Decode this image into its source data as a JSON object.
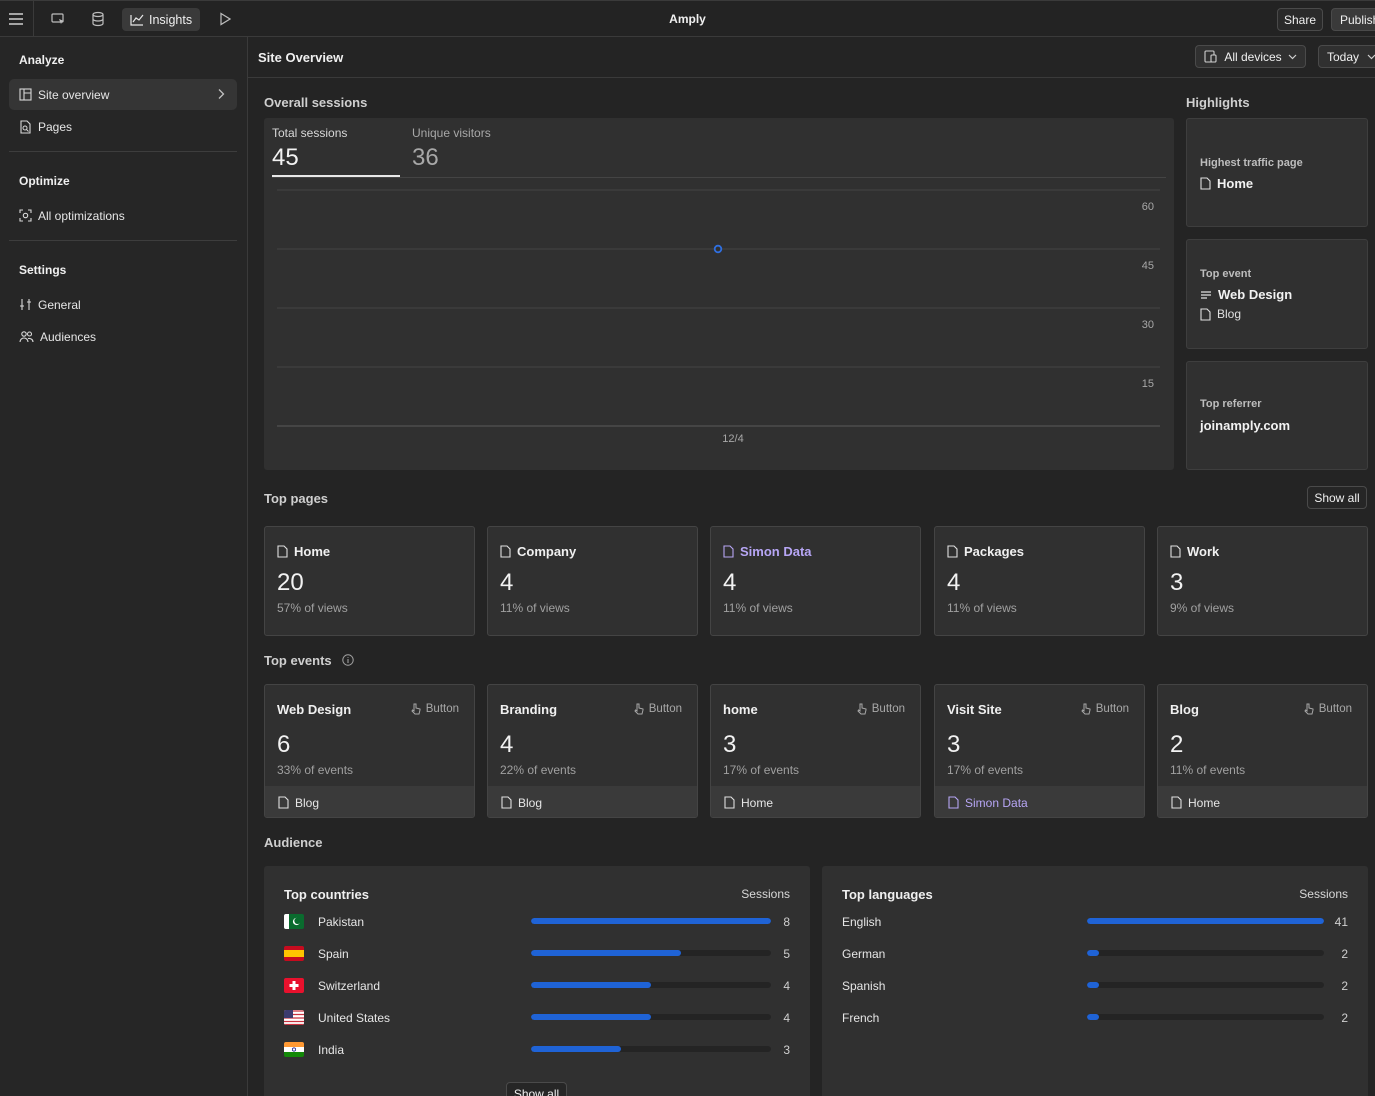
{
  "app": {
    "title": "Amply"
  },
  "topbar": {
    "menu_icon": "hamburger-icon",
    "insights_label": "Insights",
    "share_label": "Share",
    "publish_label": "Publish"
  },
  "sidebar": {
    "analyze_heading": "Analyze",
    "analyze_items": [
      {
        "label": "Site overview",
        "icon": "layout-icon"
      },
      {
        "label": "Pages",
        "icon": "page-search-icon"
      }
    ],
    "optimize_heading": "Optimize",
    "optimize_items": [
      {
        "label": "All optimizations",
        "icon": "target-icon"
      }
    ],
    "settings_heading": "Settings",
    "settings_items": [
      {
        "label": "General",
        "icon": "sliders-icon"
      },
      {
        "label": "Audiences",
        "icon": "users-icon"
      }
    ]
  },
  "header": {
    "title": "Site Overview",
    "devices_label": "All devices",
    "range_label": "Today"
  },
  "overall": {
    "title": "Overall sessions",
    "total_label": "Total sessions",
    "total_value": "45",
    "unique_label": "Unique visitors",
    "unique_value": "36"
  },
  "chart_data": {
    "type": "line",
    "x": [
      "12/4"
    ],
    "series": [
      {
        "values": [
          45
        ]
      }
    ],
    "yticks": [
      "60",
      "45",
      "30",
      "15"
    ],
    "ylim": [
      0,
      60
    ],
    "color": "#2f6fe0",
    "grid": true
  },
  "highlights": {
    "title": "Highlights",
    "traffic_label": "Highest traffic page",
    "traffic_value": "Home",
    "event_label": "Top event",
    "event_value": "Web Design",
    "event_page": "Blog",
    "referrer_label": "Top referrer",
    "referrer_value": "joinamply.com"
  },
  "top_pages": {
    "title": "Top pages",
    "show_all": "Show all",
    "items": [
      {
        "name": "Home",
        "count": "20",
        "pct": "57% of views"
      },
      {
        "name": "Company",
        "count": "4",
        "pct": "11% of views"
      },
      {
        "name": "Simon Data",
        "count": "4",
        "pct": "11% of views"
      },
      {
        "name": "Packages",
        "count": "4",
        "pct": "11% of views"
      },
      {
        "name": "Work",
        "count": "3",
        "pct": "9% of views"
      }
    ]
  },
  "top_events": {
    "title": "Top events",
    "items": [
      {
        "name": "Web Design",
        "type": "Button",
        "count": "6",
        "pct": "33% of events",
        "page": "Blog"
      },
      {
        "name": "Branding",
        "type": "Button",
        "count": "4",
        "pct": "22% of events",
        "page": "Blog"
      },
      {
        "name": "home",
        "type": "Button",
        "count": "3",
        "pct": "17% of events",
        "page": "Home"
      },
      {
        "name": "Visit Site",
        "type": "Button",
        "count": "3",
        "pct": "17% of events",
        "page": "Simon Data"
      },
      {
        "name": "Blog",
        "type": "Button",
        "count": "2",
        "pct": "11% of events",
        "page": "Home"
      }
    ]
  },
  "audience": {
    "title": "Audience",
    "countries_title": "Top countries",
    "countries_col": "Sessions",
    "countries": [
      {
        "name": "Pakistan",
        "value": "8",
        "fraction": 1.0
      },
      {
        "name": "Spain",
        "value": "5",
        "fraction": 0.625
      },
      {
        "name": "Switzerland",
        "value": "4",
        "fraction": 0.5
      },
      {
        "name": "United States",
        "value": "4",
        "fraction": 0.5
      },
      {
        "name": "India",
        "value": "3",
        "fraction": 0.375
      }
    ],
    "countries_show_all": "Show all",
    "languages_title": "Top languages",
    "languages_col": "Sessions",
    "languages": [
      {
        "name": "English",
        "value": "41",
        "fraction": 1.0
      },
      {
        "name": "German",
        "value": "2",
        "fraction": 0.049
      },
      {
        "name": "Spanish",
        "value": "2",
        "fraction": 0.049
      },
      {
        "name": "French",
        "value": "2",
        "fraction": 0.049
      }
    ]
  }
}
